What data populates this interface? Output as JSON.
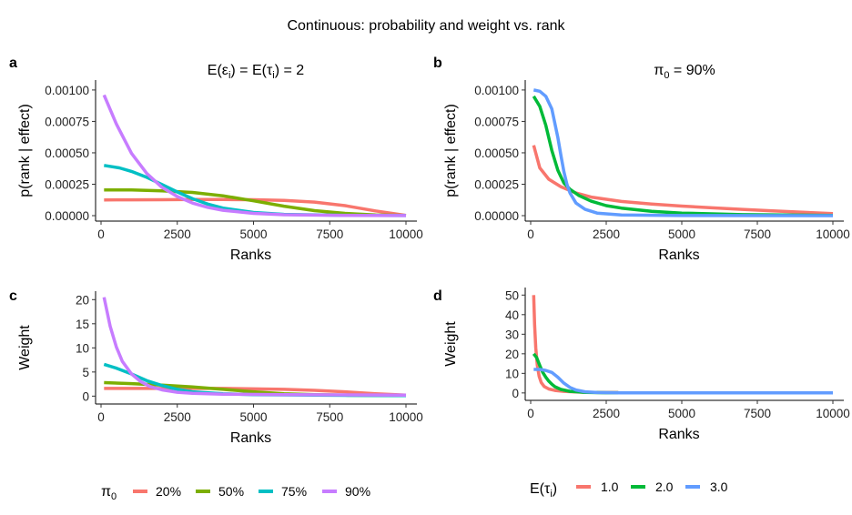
{
  "figure": {
    "title": "Continuous: probability and weight vs. rank",
    "left_legend": {
      "title": "π",
      "title_sub": "0",
      "items": [
        "20%",
        "50%",
        "75%",
        "90%"
      ]
    },
    "right_legend": {
      "title_prefix": "E(τ",
      "title_sub": "i",
      "title_suffix": ")",
      "items": [
        "1.0",
        "2.0",
        "3.0"
      ]
    }
  },
  "chart_data": [
    {
      "panel": "a",
      "type": "line",
      "title": {
        "p1": "E(ε",
        "s1": "i",
        "p2": ")  =  E(τ",
        "s2": "i",
        "p3": ")  = 2"
      },
      "xlabel": "Ranks",
      "ylabel": "p(rank | effect)",
      "xlim": [
        0,
        10000
      ],
      "ylim": [
        0,
        0.00105
      ],
      "xticks": [
        0,
        2500,
        5000,
        7500,
        10000
      ],
      "xtick_labels": [
        "0",
        "2500",
        "5000",
        "7500",
        "10000"
      ],
      "yticks": [
        0,
        0.00025,
        0.0005,
        0.00075,
        0.001
      ],
      "ytick_labels": [
        "0.00000",
        "0.00025",
        "0.00050",
        "0.00075",
        "0.00100"
      ],
      "series": [
        {
          "name": "20%",
          "color": "#F8766D",
          "x": [
            100,
            1000,
            2000,
            3000,
            4000,
            5000,
            6000,
            7000,
            8000,
            9000,
            10000
          ],
          "y": [
            0.000125,
            0.000126,
            0.000127,
            0.000128,
            0.000128,
            0.000127,
            0.000122,
            0.000108,
            8e-05,
            3.8e-05,
            2e-06
          ]
        },
        {
          "name": "50%",
          "color": "#7CAE00",
          "x": [
            100,
            1000,
            2000,
            3000,
            4000,
            5000,
            6000,
            7000,
            8000,
            9000,
            10000
          ],
          "y": [
            0.000205,
            0.000205,
            0.000198,
            0.000185,
            0.000158,
            0.000118,
            7.5e-05,
            4e-05,
            1.8e-05,
            6e-06,
            2e-06
          ]
        },
        {
          "name": "75%",
          "color": "#00BFC4",
          "x": [
            100,
            600,
            1000,
            1500,
            2000,
            2500,
            3000,
            3500,
            4000,
            5000,
            6000,
            8000,
            10000
          ],
          "y": [
            0.0004,
            0.00038,
            0.000352,
            0.000305,
            0.000248,
            0.000188,
            0.000135,
            9.2e-05,
            6e-05,
            2.5e-05,
            1e-05,
            3e-06,
            1e-06
          ]
        },
        {
          "name": "90%",
          "color": "#C77CFF",
          "x": [
            100,
            500,
            1000,
            1500,
            2000,
            2500,
            3000,
            3500,
            4000,
            5000,
            6000,
            8000,
            10000
          ],
          "y": [
            0.00096,
            0.00073,
            0.000495,
            0.000335,
            0.000225,
            0.000152,
            0.0001,
            6.6e-05,
            4.3e-05,
            1.8e-05,
            7e-06,
            2e-06,
            1e-06
          ]
        }
      ]
    },
    {
      "panel": "b",
      "type": "line",
      "title": {
        "p1": "π",
        "s1": "0",
        "p2": " = 90%"
      },
      "xlabel": "Ranks",
      "ylabel": "p(rank | effect)",
      "xlim": [
        0,
        10000
      ],
      "ylim": [
        0,
        0.00105
      ],
      "xticks": [
        0,
        2500,
        5000,
        7500,
        10000
      ],
      "xtick_labels": [
        "0",
        "2500",
        "5000",
        "7500",
        "10000"
      ],
      "yticks": [
        0,
        0.00025,
        0.0005,
        0.00075,
        0.001
      ],
      "ytick_labels": [
        "0.00000",
        "0.00025",
        "0.00050",
        "0.00075",
        "0.00100"
      ],
      "series": [
        {
          "name": "1.0",
          "color": "#F8766D",
          "x": [
            100,
            300,
            600,
            1000,
            1500,
            2000,
            3000,
            4000,
            5000,
            6000,
            7000,
            8000,
            9000,
            10000
          ],
          "y": [
            0.00056,
            0.00038,
            0.00029,
            0.00023,
            0.00018,
            0.000148,
            0.000113,
            9.3e-05,
            7.6e-05,
            6.2e-05,
            5e-05,
            3.8e-05,
            2.7e-05,
            1.7e-05
          ]
        },
        {
          "name": "2.0",
          "color": "#00BA38",
          "x": [
            100,
            300,
            500,
            700,
            900,
            1100,
            1300,
            1600,
            2000,
            2500,
            3000,
            4000,
            5000,
            7000,
            10000
          ],
          "y": [
            0.00095,
            0.00087,
            0.00072,
            0.00052,
            0.00036,
            0.00026,
            0.00021,
            0.00016,
            0.000115,
            8e-05,
            6e-05,
            3.5e-05,
            2e-05,
            8e-06,
            2e-06
          ]
        },
        {
          "name": "3.0",
          "color": "#619CFF",
          "x": [
            100,
            300,
            500,
            700,
            900,
            1000,
            1100,
            1200,
            1300,
            1500,
            1800,
            2200,
            3000,
            5000,
            10000
          ],
          "y": [
            0.001,
            0.00099,
            0.00095,
            0.00085,
            0.00062,
            0.00048,
            0.00035,
            0.00025,
            0.00018,
            0.0001,
            5e-05,
            2e-05,
            5e-06,
            1e-06,
            0.0
          ]
        }
      ]
    },
    {
      "panel": "c",
      "type": "line",
      "title": "",
      "xlabel": "Ranks",
      "ylabel": "Weight",
      "xlim": [
        0,
        10000
      ],
      "ylim": [
        -0.5,
        21
      ],
      "xticks": [
        0,
        2500,
        5000,
        7500,
        10000
      ],
      "xtick_labels": [
        "0",
        "2500",
        "5000",
        "7500",
        "10000"
      ],
      "yticks": [
        0,
        5,
        10,
        15,
        20
      ],
      "ytick_labels": [
        "0",
        "5",
        "10",
        "15",
        "20"
      ],
      "series": [
        {
          "name": "20%",
          "color": "#F8766D",
          "x": [
            100,
            2000,
            4000,
            6000,
            7000,
            8000,
            9000,
            10000
          ],
          "y": [
            1.6,
            1.6,
            1.6,
            1.4,
            1.2,
            0.9,
            0.5,
            0.2
          ]
        },
        {
          "name": "50%",
          "color": "#7CAE00",
          "x": [
            100,
            1000,
            2000,
            3000,
            4000,
            5000,
            6000,
            7000,
            8000,
            10000
          ],
          "y": [
            2.8,
            2.6,
            2.3,
            1.9,
            1.4,
            0.9,
            0.5,
            0.3,
            0.2,
            0.1
          ]
        },
        {
          "name": "75%",
          "color": "#00BFC4",
          "x": [
            100,
            500,
            1000,
            1500,
            2000,
            2500,
            3000,
            4000,
            5000,
            7000,
            10000
          ],
          "y": [
            6.6,
            5.8,
            4.6,
            3.2,
            2.2,
            1.4,
            0.9,
            0.5,
            0.3,
            0.2,
            0.1
          ]
        },
        {
          "name": "90%",
          "color": "#C77CFF",
          "x": [
            100,
            300,
            500,
            700,
            1000,
            1300,
            1600,
            2000,
            2500,
            3000,
            4000,
            6000,
            10000
          ],
          "y": [
            20.5,
            14.5,
            10.2,
            7.2,
            4.6,
            3.0,
            2.0,
            1.3,
            0.8,
            0.6,
            0.4,
            0.3,
            0.2
          ]
        }
      ]
    },
    {
      "panel": "d",
      "type": "line",
      "title": "",
      "xlabel": "Ranks",
      "ylabel": "Weight",
      "xlim": [
        0,
        10000
      ],
      "ylim": [
        -1,
        52
      ],
      "xticks": [
        0,
        2500,
        5000,
        7500,
        10000
      ],
      "xtick_labels": [
        "0",
        "2500",
        "5000",
        "7500",
        "10000"
      ],
      "yticks": [
        0,
        10,
        20,
        30,
        40,
        50
      ],
      "ytick_labels": [
        "0",
        "10",
        "20",
        "30",
        "40",
        "50"
      ],
      "series": [
        {
          "name": "1.0",
          "color": "#F8766D",
          "x": [
            100,
            130,
            170,
            220,
            280,
            350,
            450,
            600,
            800,
            1100,
            1500,
            2000,
            2900
          ],
          "y": [
            50,
            35,
            23,
            14,
            8.5,
            5.3,
            3.3,
            2.0,
            1.3,
            0.8,
            0.5,
            0.3,
            0.2
          ]
        },
        {
          "name": "2.0",
          "color": "#00BA38",
          "x": [
            100,
            200,
            300,
            400,
            500,
            600,
            700,
            800,
            1000,
            1300,
            1800,
            2500,
            2900
          ],
          "y": [
            20,
            18,
            14,
            10.5,
            8,
            6,
            4.5,
            3.2,
            1.8,
            0.8,
            0.3,
            0.1,
            0.1
          ]
        },
        {
          "name": "3.0",
          "color": "#619CFF",
          "x": [
            100,
            300,
            500,
            700,
            900,
            1100,
            1300,
            1500,
            1800,
            2200,
            3000,
            5000,
            10000
          ],
          "y": [
            12,
            12,
            11.5,
            10.5,
            8,
            5,
            2.8,
            1.5,
            0.6,
            0.2,
            0.05,
            0,
            0
          ]
        }
      ]
    }
  ]
}
